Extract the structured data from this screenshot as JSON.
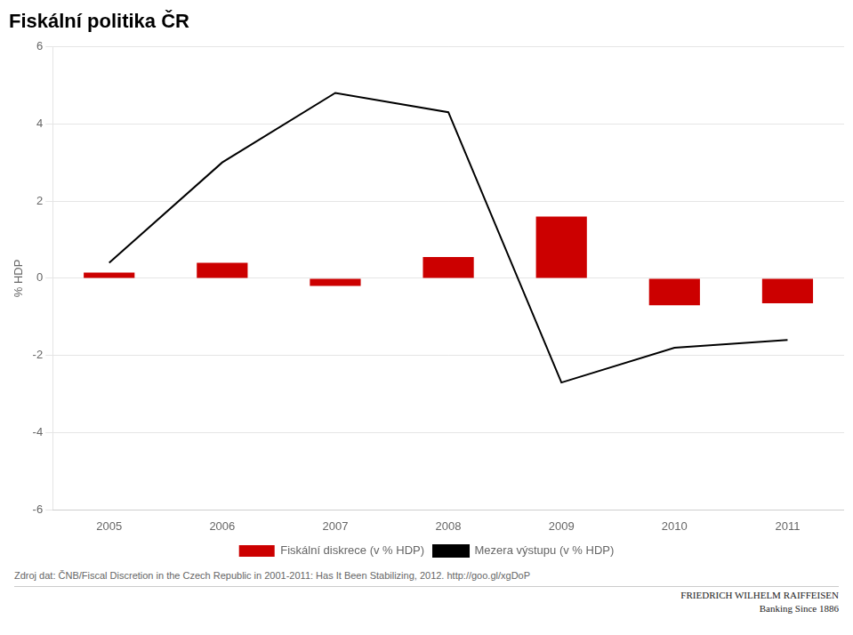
{
  "chart_data": {
    "type": "bar",
    "title": "Fiskální politika ČR",
    "y_label": "% HDP",
    "categories": [
      "2005",
      "2006",
      "2007",
      "2008",
      "2009",
      "2010",
      "2011"
    ],
    "series": [
      {
        "name": "Fiskální diskrece (v % HDP)",
        "type": "bar",
        "color": "#cc0000",
        "values": [
          0.15,
          0.4,
          -0.2,
          0.55,
          1.6,
          -0.7,
          -0.65
        ]
      },
      {
        "name": "Mezera výstupu (v % HDP)",
        "type": "line",
        "color": "#000000",
        "marker": "none",
        "line_style": "solid",
        "values": [
          0.4,
          3.0,
          4.8,
          4.3,
          -2.7,
          -1.8,
          -1.6
        ]
      }
    ],
    "ylim": [
      -6,
      6
    ],
    "yticks": [
      -6,
      -4,
      -2,
      0,
      2,
      4,
      6
    ],
    "grid": true,
    "legend": "bottom",
    "annotations": [
      "Zdroj dat: ČNB/Fiscal Discretion in the Czech Republic in 2001-2011: Has It Been Stabilizing, 2012. http://goo.gl/xgDoP",
      "FRIEDRICH WILHELM RAIFFEISEN",
      "Banking Since 1886"
    ]
  }
}
